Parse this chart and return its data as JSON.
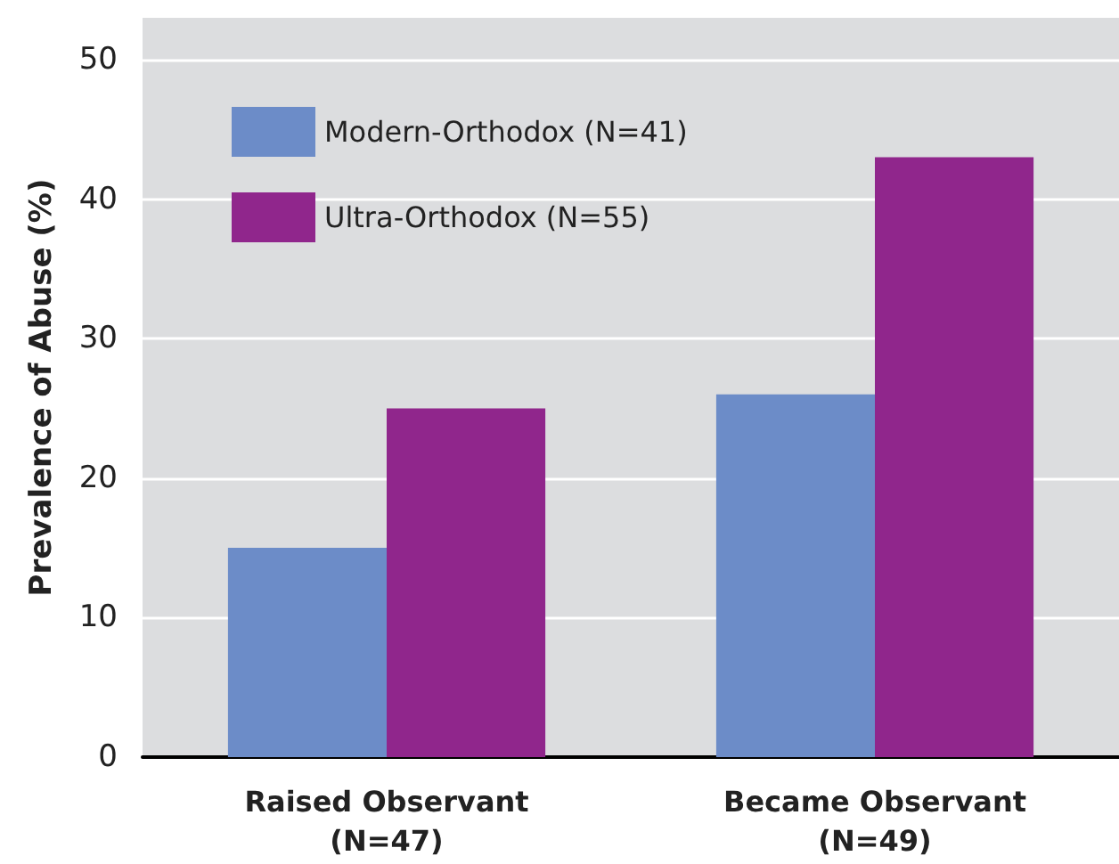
{
  "chart_data": {
    "type": "bar",
    "ylabel": "Prevalence of Abuse (%)",
    "categories": [
      "Raised Observant\n(N=47)",
      "Became Observant\n(N=49)"
    ],
    "series": [
      {
        "name": "Modern-Orthodox (N=41)",
        "color": "#6c8cc8",
        "values": [
          15,
          26
        ]
      },
      {
        "name": "Ultra-Orthodox (N=55)",
        "color": "#90268c",
        "values": [
          25,
          43
        ]
      }
    ],
    "ylim": [
      0,
      53
    ],
    "yticks": [
      0,
      10,
      20,
      30,
      40,
      50
    ],
    "grid": "y",
    "legend": "top left"
  }
}
